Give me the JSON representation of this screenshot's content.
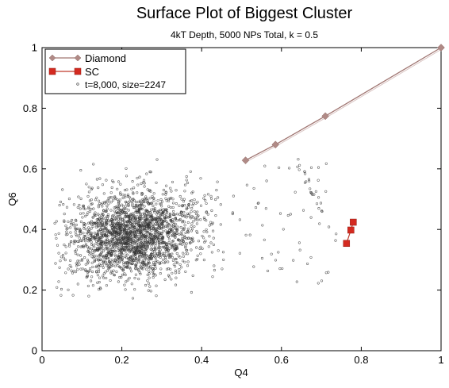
{
  "chart_data": {
    "type": "scatter",
    "title": "Surface Plot of Biggest Cluster",
    "subtitle": "4kT Depth, 5000 NPs Total, k = 0.5",
    "xlabel": "Q4",
    "ylabel": "Q6",
    "xlim": [
      0,
      1
    ],
    "ylim": [
      0,
      1
    ],
    "x_ticks": [
      "0",
      "0.2",
      "0.4",
      "0.6",
      "0.8",
      "1"
    ],
    "y_ticks": [
      "0",
      "0.2",
      "0.4",
      "0.6",
      "0.8",
      "1"
    ],
    "grid": false,
    "legend_position": "top-left",
    "series": [
      {
        "name": "Diamond",
        "type": "line",
        "marker": "diamond",
        "color": "#b08a86",
        "line_color": "#a07672",
        "points": [
          [
            0.51,
            0.628
          ],
          [
            0.585,
            0.68
          ],
          [
            0.71,
            0.774
          ],
          [
            1.0,
            1.0
          ]
        ]
      },
      {
        "name": "SC",
        "type": "line",
        "marker": "square",
        "color": "#d42a20",
        "line_color": "#c0392b",
        "points": [
          [
            0.763,
            0.354
          ],
          [
            0.774,
            0.398
          ],
          [
            0.78,
            0.424
          ]
        ]
      },
      {
        "name": "t=8,000, size=2247",
        "type": "scatter",
        "marker": "open-circle",
        "color": "#333333",
        "count": 2247,
        "distribution": {
          "main_cloud": {
            "count": 2175,
            "x_mean": 0.23,
            "y_mean": 0.38,
            "x_sd": 0.085,
            "y_sd": 0.072,
            "x_range": [
              0.03,
              0.5
            ],
            "y_range": [
              0.17,
              0.68
            ]
          },
          "sparse_region": {
            "count": 72,
            "x_range": [
              0.5,
              0.83
            ],
            "y_range": [
              0.22,
              0.72
            ]
          }
        }
      }
    ]
  }
}
